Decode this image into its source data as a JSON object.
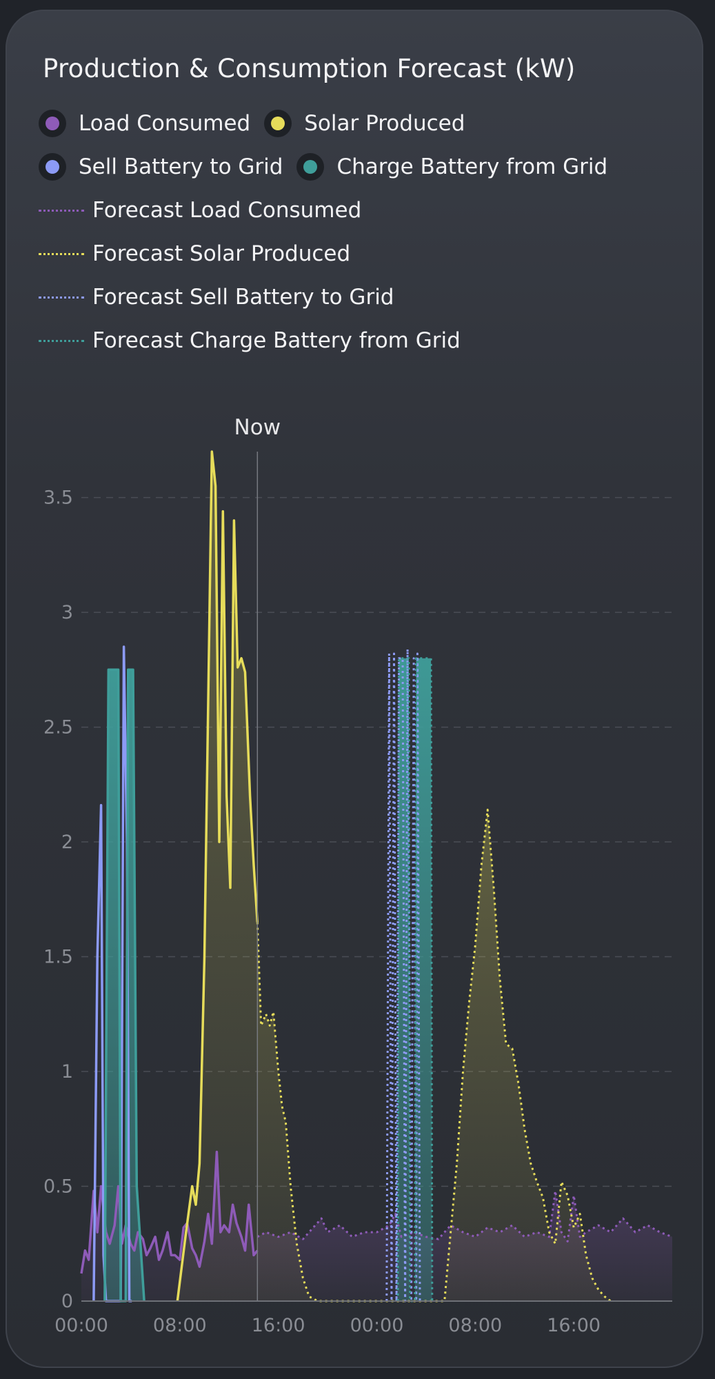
{
  "card": {
    "title": "Production & Consumption Forecast (kW)"
  },
  "legend": {
    "load": "Load Consumed",
    "solar": "Solar Produced",
    "sell": "Sell Battery to Grid",
    "charge": "Charge Battery from Grid",
    "f_load": "Forecast Load Consumed",
    "f_solar": "Forecast Solar Produced",
    "f_sell": "Forecast Sell Battery to Grid",
    "f_charge": "Forecast Charge Battery from Grid"
  },
  "colors": {
    "load": "#8e5bb8",
    "solar": "#e6dc5a",
    "sell": "#8c9af5",
    "charge": "#3f9e9a"
  },
  "chart_data": {
    "type": "line",
    "title": "Production & Consumption Forecast (kW)",
    "now_label": "Now",
    "now_x": 14.3,
    "xlim": [
      0,
      48
    ],
    "ylim": [
      0,
      3.7
    ],
    "x_ticks": [
      {
        "x": 0,
        "label": "00:00"
      },
      {
        "x": 8,
        "label": "08:00"
      },
      {
        "x": 16,
        "label": "16:00"
      },
      {
        "x": 24,
        "label": "00:00"
      },
      {
        "x": 32,
        "label": "08:00"
      },
      {
        "x": 40,
        "label": "16:00"
      }
    ],
    "y_ticks": [
      {
        "y": 0,
        "label": "0"
      },
      {
        "y": 0.5,
        "label": "0.5"
      },
      {
        "y": 1,
        "label": "1"
      },
      {
        "y": 1.5,
        "label": "1.5"
      },
      {
        "y": 2,
        "label": "2"
      },
      {
        "y": 2.5,
        "label": "2.5"
      },
      {
        "y": 3,
        "label": "3"
      },
      {
        "y": 3.5,
        "label": "3.5"
      }
    ],
    "series": [
      {
        "key": "load",
        "name": "Load Consumed",
        "color": "#8e5bb8",
        "dotted": false,
        "fill": true,
        "x": [
          0,
          0.3,
          0.6,
          1,
          1.3,
          1.6,
          2,
          2.3,
          2.7,
          3,
          3.3,
          3.6,
          4,
          4.3,
          4.6,
          5,
          5.3,
          5.6,
          6,
          6.3,
          6.6,
          7,
          7.3,
          7.6,
          8,
          8.3,
          8.6,
          9,
          9.3,
          9.6,
          10,
          10.3,
          10.6,
          11,
          11.3,
          11.6,
          12,
          12.3,
          12.6,
          13,
          13.3,
          13.6,
          14,
          14.3
        ],
        "y": [
          0.12,
          0.22,
          0.18,
          0.48,
          0.3,
          0.5,
          0.3,
          0.25,
          0.33,
          0.5,
          0.25,
          0.33,
          0.25,
          0.22,
          0.3,
          0.27,
          0.2,
          0.23,
          0.28,
          0.18,
          0.22,
          0.3,
          0.2,
          0.2,
          0.18,
          0.32,
          0.34,
          0.23,
          0.2,
          0.15,
          0.26,
          0.38,
          0.25,
          0.65,
          0.3,
          0.33,
          0.3,
          0.42,
          0.34,
          0.28,
          0.22,
          0.42,
          0.2,
          0.22
        ]
      },
      {
        "key": "f_load",
        "name": "Forecast Load Consumed",
        "color": "#8e5bb8",
        "dotted": true,
        "fill": true,
        "x": [
          14.3,
          15,
          16,
          17,
          18,
          19,
          19.5,
          20,
          21,
          22,
          23,
          24,
          25,
          25.5,
          26,
          27,
          28,
          29,
          30,
          31,
          32,
          33,
          34,
          35,
          36,
          37,
          38,
          38.5,
          39,
          39.5,
          40,
          40.5,
          41,
          42,
          43,
          44,
          45,
          46,
          47,
          48
        ],
        "y": [
          0.28,
          0.3,
          0.28,
          0.3,
          0.27,
          0.33,
          0.36,
          0.3,
          0.33,
          0.28,
          0.3,
          0.3,
          0.33,
          0.38,
          0.28,
          0.3,
          0.28,
          0.27,
          0.33,
          0.3,
          0.28,
          0.32,
          0.3,
          0.33,
          0.28,
          0.3,
          0.28,
          0.48,
          0.3,
          0.26,
          0.46,
          0.28,
          0.3,
          0.33,
          0.3,
          0.36,
          0.3,
          0.33,
          0.3,
          0.28
        ]
      },
      {
        "key": "solar",
        "name": "Solar Produced",
        "color": "#e6dc5a",
        "dotted": false,
        "fill": true,
        "x": [
          7.8,
          8.5,
          9,
          9.3,
          9.6,
          10,
          10.3,
          10.6,
          10.9,
          11.2,
          11.5,
          11.8,
          12.1,
          12.4,
          12.7,
          13,
          13.3,
          13.7,
          14,
          14.3
        ],
        "y": [
          0,
          0.3,
          0.5,
          0.42,
          0.6,
          1.5,
          2.6,
          3.7,
          3.55,
          2.0,
          3.44,
          2.2,
          1.8,
          3.4,
          2.76,
          2.8,
          2.74,
          2.2,
          1.9,
          1.65
        ]
      },
      {
        "key": "f_solar",
        "name": "Forecast Solar Produced",
        "color": "#e6dc5a",
        "dotted": true,
        "fill": true,
        "x": [
          14.3,
          14.6,
          15,
          15.3,
          15.6,
          16,
          16.3,
          16.6,
          17,
          17.5,
          18,
          18.5,
          19.2,
          29.5,
          30,
          30.5,
          31,
          31.5,
          32,
          32.5,
          33,
          33.5,
          34,
          34.5,
          35,
          35.5,
          36,
          36.5,
          37,
          37.5,
          38,
          38.5,
          39,
          39.5,
          40,
          40.5,
          41,
          41.5,
          42,
          42.5,
          43
        ],
        "y": [
          1.65,
          1.2,
          1.25,
          1.2,
          1.26,
          1.0,
          0.85,
          0.78,
          0.5,
          0.25,
          0.1,
          0.02,
          0,
          0,
          0.3,
          0.6,
          1.0,
          1.3,
          1.55,
          1.9,
          2.14,
          1.8,
          1.4,
          1.12,
          1.1,
          0.95,
          0.75,
          0.6,
          0.52,
          0.45,
          0.3,
          0.25,
          0.52,
          0.46,
          0.32,
          0.38,
          0.2,
          0.1,
          0.05,
          0.02,
          0
        ]
      },
      {
        "key": "sell",
        "name": "Sell Battery to Grid",
        "color": "#8c9af5",
        "dotted": false,
        "fill": false,
        "x": [
          1,
          1.3,
          1.6,
          1.8,
          2,
          2.2,
          3,
          3.2,
          3.45,
          3.7,
          3.9,
          4.1
        ],
        "y": [
          0,
          1.5,
          2.16,
          0.2,
          0,
          0,
          0,
          0,
          2.85,
          2.0,
          0,
          0
        ]
      },
      {
        "key": "f_sell",
        "name": "Forecast Sell Battery to Grid",
        "color": "#8c9af5",
        "dotted": true,
        "fill": false,
        "x": [
          24.8,
          25,
          25.2,
          25.4,
          25.6,
          25.8,
          26.1,
          26.3,
          26.5,
          26.8,
          27,
          27.2,
          27.3,
          27.5
        ],
        "y": [
          0,
          2.82,
          0,
          2.82,
          0,
          2.8,
          2.8,
          0,
          2.84,
          0,
          2.8,
          0,
          2.82,
          0
        ]
      },
      {
        "key": "charge",
        "name": "Charge Battery from Grid",
        "color": "#3f9e9a",
        "dotted": false,
        "fill": true,
        "x": [
          1.9,
          2.2,
          3,
          3.2,
          3.6,
          3.8,
          4.2,
          4.5,
          5.1
        ],
        "y": [
          0,
          2.75,
          2.75,
          0,
          0,
          2.75,
          2.75,
          0.5,
          0
        ]
      },
      {
        "key": "f_charge",
        "name": "Forecast Charge Battery from Grid",
        "color": "#3f9e9a",
        "dotted": true,
        "fill": true,
        "x": [
          25.7,
          25.8,
          26.6,
          26.7,
          27.1,
          27.2,
          28.4,
          28.5
        ],
        "y": [
          0,
          2.8,
          2.8,
          0,
          0,
          2.8,
          2.8,
          0
        ]
      }
    ]
  }
}
